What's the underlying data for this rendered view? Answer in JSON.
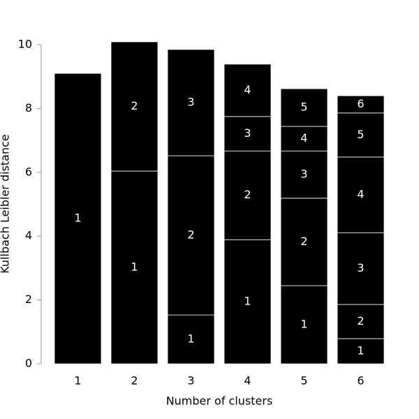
{
  "chart_data": {
    "type": "stacked_bar",
    "x_label": "Number of clusters",
    "y_label": "Kullbach Leibler distance",
    "categories": [
      "1",
      "2",
      "3",
      "4",
      "5",
      "6"
    ],
    "series": [
      {
        "name": "1",
        "color": "#000000",
        "values": [
          9.1,
          6.04,
          1.53,
          3.89,
          2.45,
          0.79
        ]
      },
      {
        "name": "2",
        "color": "#000000",
        "values": [
          null,
          4.05,
          4.99,
          2.78,
          2.74,
          1.07
        ]
      },
      {
        "name": "3",
        "color": "#000000",
        "values": [
          null,
          null,
          3.33,
          1.08,
          1.48,
          2.25
        ]
      },
      {
        "name": "4",
        "color": "#000000",
        "values": [
          null,
          null,
          null,
          1.64,
          0.77,
          2.37
        ]
      },
      {
        "name": "5",
        "color": "#000000",
        "values": [
          null,
          null,
          null,
          null,
          1.18,
          1.38
        ]
      },
      {
        "name": "6",
        "color": "#000000",
        "values": [
          null,
          null,
          null,
          null,
          null,
          0.54
        ]
      }
    ],
    "ylim": [
      0,
      10
    ],
    "yticks": [
      0,
      2,
      4,
      6,
      8,
      10
    ]
  }
}
